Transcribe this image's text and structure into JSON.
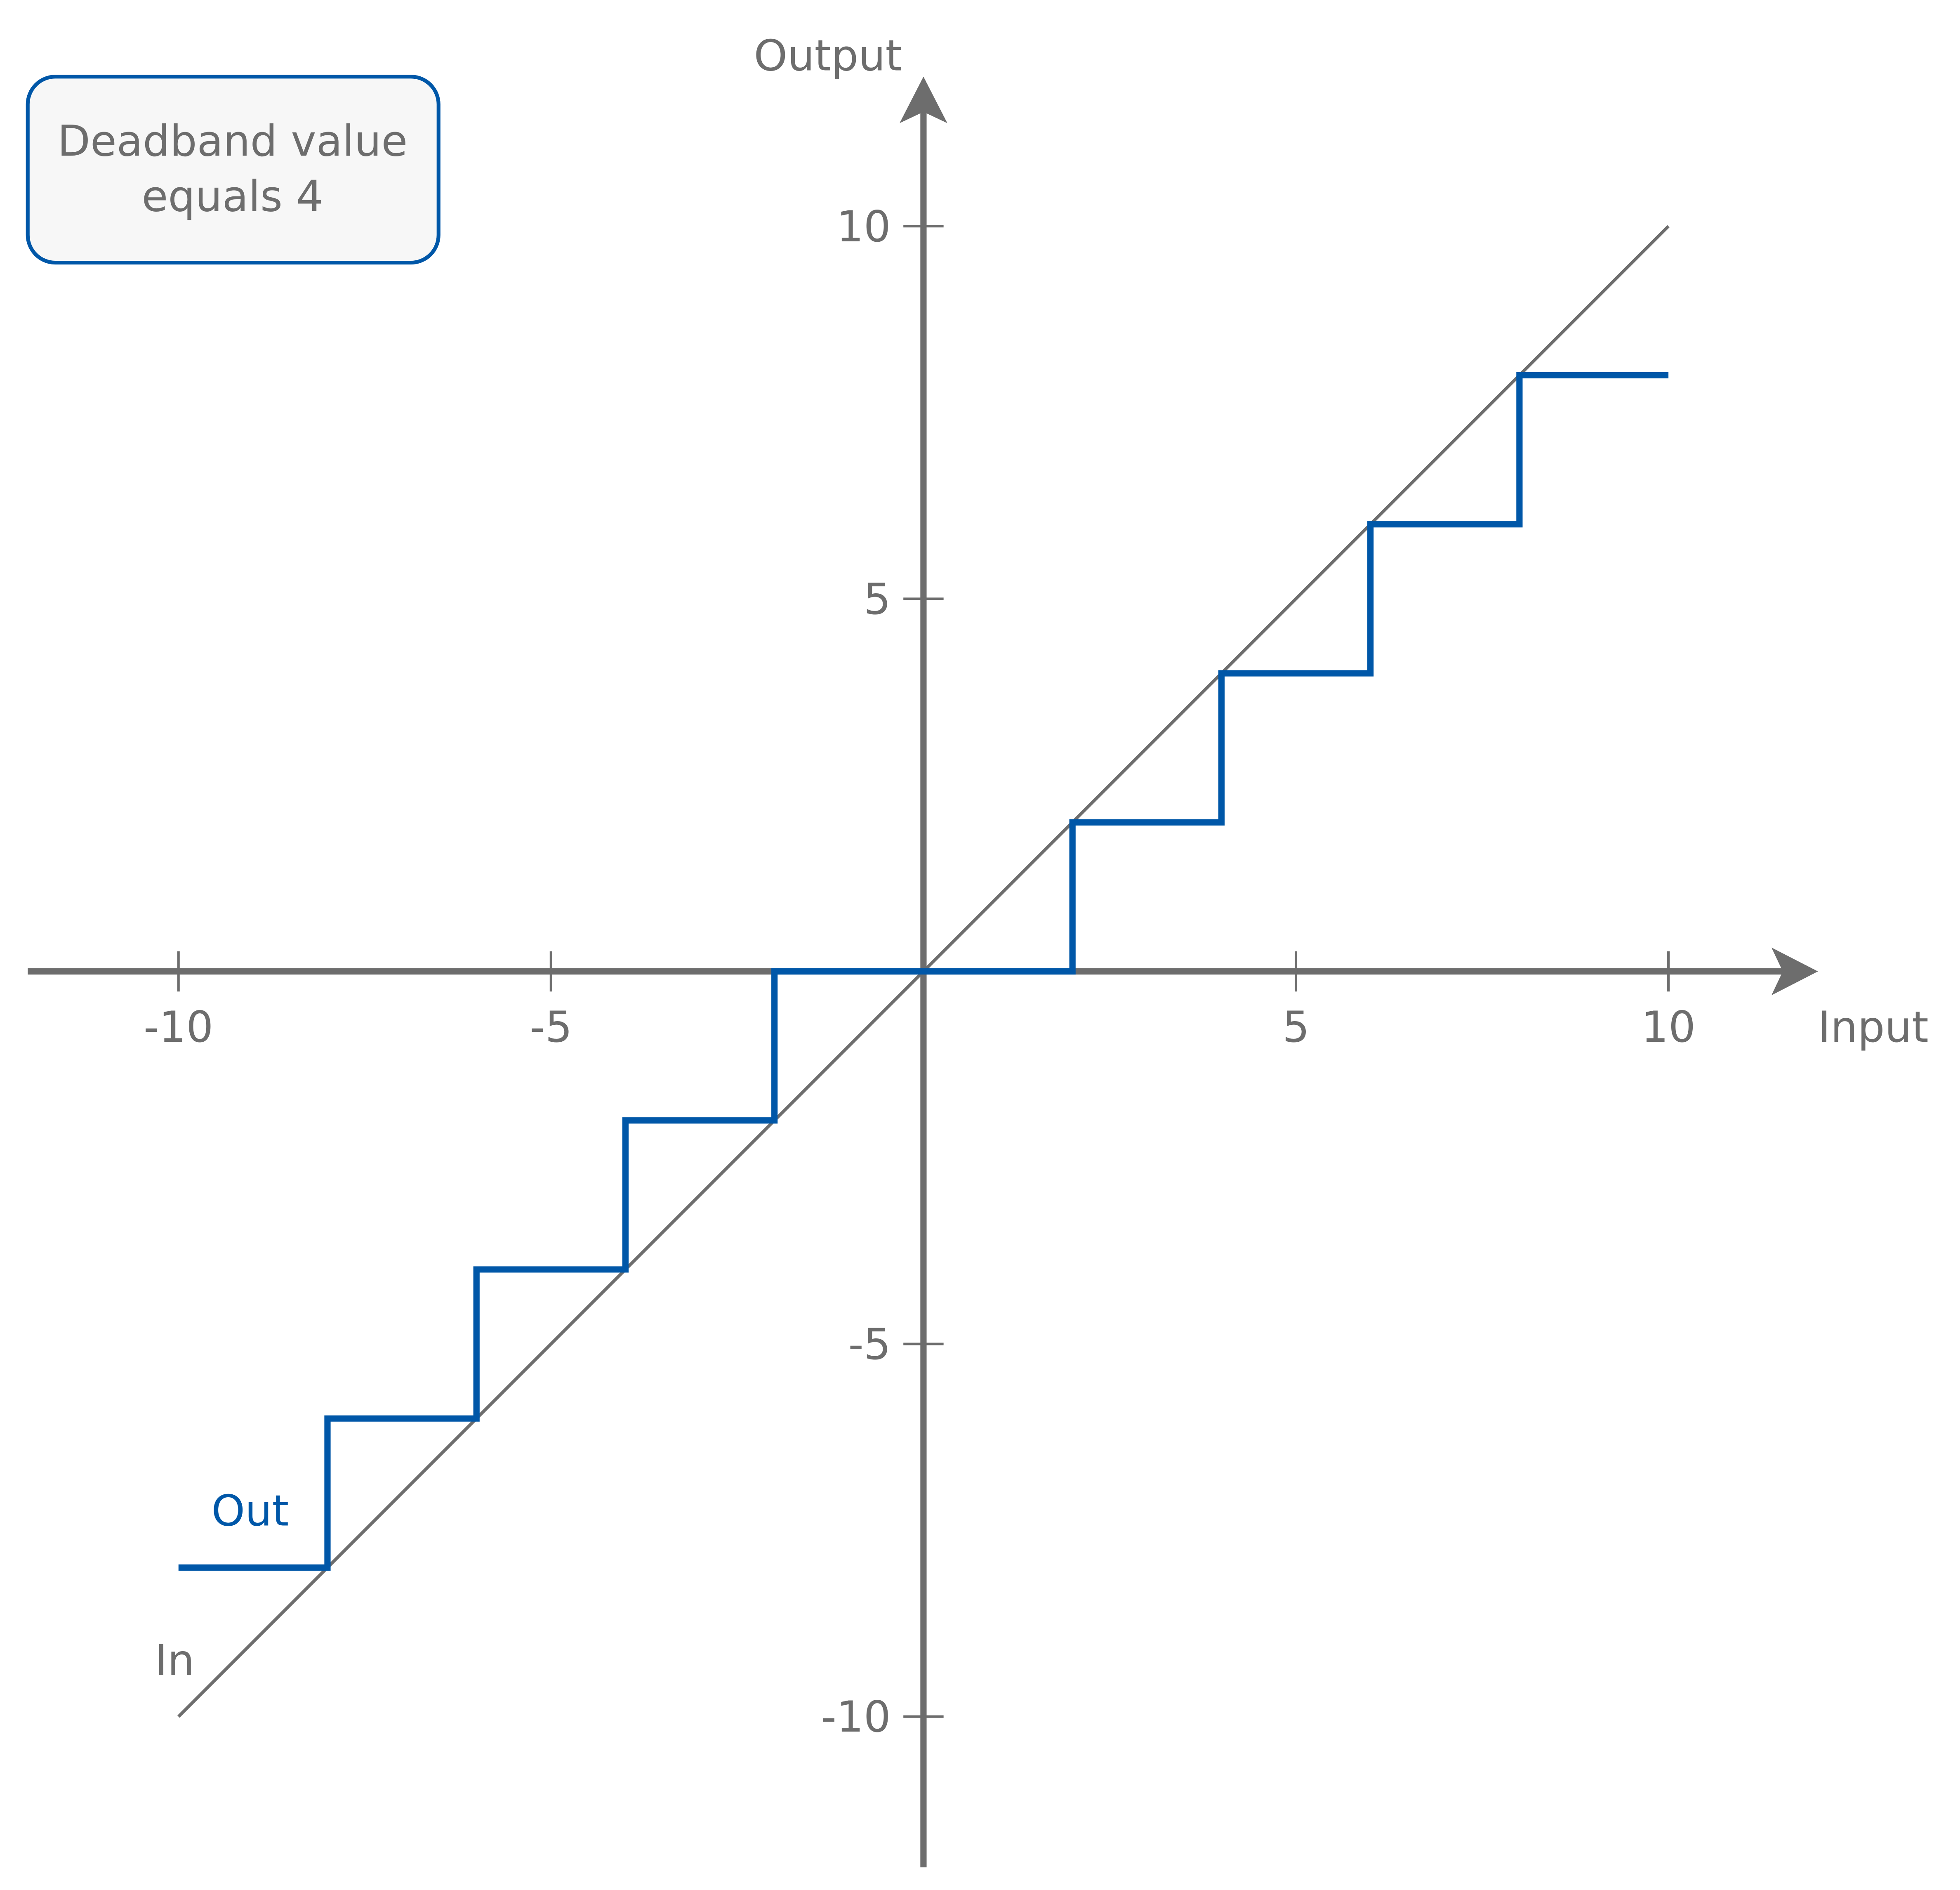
{
  "chart_data": {
    "type": "line",
    "title": "",
    "xlabel": "Input",
    "ylabel": "Output",
    "xlim": [
      -12,
      12
    ],
    "ylim": [
      -12,
      12
    ],
    "x_ticks": [
      -10,
      -5,
      5,
      10
    ],
    "y_ticks": [
      10,
      5,
      -5,
      -10
    ],
    "x_tick_labels": [
      "-10",
      "-5",
      "5",
      "10"
    ],
    "y_tick_labels": [
      "10",
      "5",
      "-5",
      "-10"
    ],
    "grid": false,
    "annotation": {
      "line1": "Deadband value",
      "line2": "equals 4"
    },
    "series": [
      {
        "name": "In",
        "color": "#6d6d6d",
        "style": "line",
        "x": [
          -10,
          10
        ],
        "y": [
          -10,
          10
        ]
      },
      {
        "name": "Out",
        "color": "#0057a8",
        "style": "step",
        "x": [
          -10,
          -8,
          -8,
          -6,
          -6,
          -4,
          -4,
          -2,
          -2,
          2,
          2,
          4,
          4,
          6,
          6,
          8,
          8,
          10
        ],
        "y": [
          -8,
          -8,
          -6,
          -6,
          -4,
          -4,
          -2,
          -2,
          0,
          0,
          2,
          2,
          4,
          4,
          6,
          6,
          8,
          8
        ]
      }
    ]
  },
  "colors": {
    "axis": "#6d6d6d",
    "accent": "#0057a8",
    "box_fill": "#f7f7f7"
  }
}
